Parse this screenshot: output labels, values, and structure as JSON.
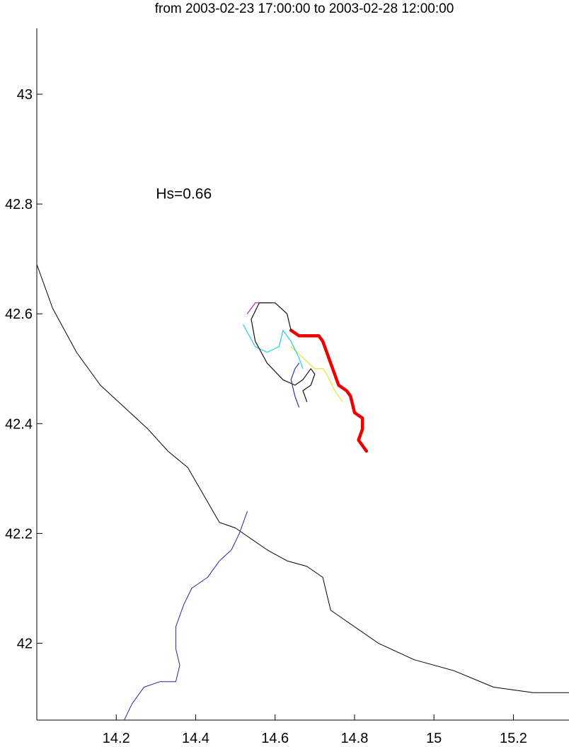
{
  "chart_data": {
    "type": "line",
    "title": "from 2003-02-23 17:00:00 to 2003-02-28 12:00:00",
    "xlabel": "",
    "ylabel": "",
    "xlim": [
      14.0,
      15.34
    ],
    "ylim": [
      41.86,
      43.12
    ],
    "x_ticks": [
      {
        "value": 14.2,
        "label": "14.2"
      },
      {
        "value": 14.4,
        "label": "14.4"
      },
      {
        "value": 14.6,
        "label": "14.6"
      },
      {
        "value": 14.8,
        "label": "14.8"
      },
      {
        "value": 15.0,
        "label": "15"
      },
      {
        "value": 15.2,
        "label": "15.2"
      }
    ],
    "y_ticks": [
      {
        "value": 42.0,
        "label": "42"
      },
      {
        "value": 42.2,
        "label": "42.2"
      },
      {
        "value": 42.4,
        "label": "42.4"
      },
      {
        "value": 42.6,
        "label": "42.6"
      },
      {
        "value": 42.8,
        "label": "42.8"
      },
      {
        "value": 43.0,
        "label": "43"
      }
    ],
    "annotation": {
      "text": "Hs=0.66",
      "x": 14.3,
      "y": 42.81
    },
    "grid": false,
    "series": [
      {
        "kind": "coastline",
        "color": "#000000",
        "x": [
          14.0,
          14.04,
          14.1,
          14.16,
          14.22,
          14.28,
          14.33,
          14.38,
          14.42,
          14.46,
          14.5,
          14.54,
          14.58,
          14.63,
          14.68,
          14.72,
          14.73,
          14.74,
          14.78,
          14.86,
          14.95,
          15.05,
          15.15,
          15.25,
          15.34
        ],
        "y": [
          42.69,
          42.61,
          42.53,
          42.47,
          42.43,
          42.39,
          42.35,
          42.32,
          42.27,
          42.22,
          42.21,
          42.19,
          42.17,
          42.15,
          42.14,
          42.12,
          42.09,
          42.06,
          42.04,
          42.0,
          41.97,
          41.95,
          41.92,
          41.91,
          41.91
        ]
      },
      {
        "kind": "river",
        "color": "#1f2a9e",
        "x": [
          14.53,
          14.51,
          14.49,
          14.46,
          14.43,
          14.39,
          14.37,
          14.35,
          14.35,
          14.36,
          14.35,
          14.31,
          14.27,
          14.24,
          14.22
        ],
        "y": [
          42.24,
          42.2,
          42.17,
          42.15,
          42.12,
          42.1,
          42.07,
          42.03,
          41.99,
          41.96,
          41.93,
          41.93,
          41.92,
          41.89,
          41.86
        ]
      },
      {
        "kind": "trajectory",
        "color": "#ee0000",
        "x": [
          14.64,
          14.66,
          14.69,
          14.71,
          14.72,
          14.74,
          14.76,
          14.78,
          14.79,
          14.8,
          14.82,
          14.82,
          14.81,
          14.83
        ],
        "y": [
          42.57,
          42.56,
          42.56,
          42.56,
          42.55,
          42.51,
          42.47,
          42.46,
          42.45,
          42.42,
          42.41,
          42.39,
          42.37,
          42.35
        ]
      },
      {
        "kind": "trajectory",
        "color": "#f2e02a",
        "x": [
          14.64,
          14.67,
          14.7,
          14.72,
          14.73,
          14.75,
          14.77
        ],
        "y": [
          42.54,
          42.52,
          42.5,
          42.5,
          42.49,
          42.46,
          42.44
        ]
      },
      {
        "kind": "trajectory",
        "color": "#22d0e8",
        "x": [
          14.52,
          14.55,
          14.58,
          14.61,
          14.62,
          14.64,
          14.66,
          14.67
        ],
        "y": [
          42.58,
          42.54,
          42.53,
          42.54,
          42.57,
          42.55,
          42.52,
          42.5
        ]
      },
      {
        "kind": "trajectory",
        "color": "#c020c0",
        "x": [
          14.53,
          14.54,
          14.55,
          14.57,
          14.59
        ],
        "y": [
          42.6,
          42.61,
          42.62,
          42.62,
          42.62
        ]
      },
      {
        "kind": "trajectory",
        "color": "#111111",
        "x": [
          14.64,
          14.63,
          14.6,
          14.56,
          14.54,
          14.55,
          14.58,
          14.62,
          14.65,
          14.67,
          14.69,
          14.7,
          14.69,
          14.67,
          14.68
        ],
        "y": [
          42.57,
          42.6,
          42.62,
          42.62,
          42.59,
          42.55,
          42.51,
          42.48,
          42.47,
          42.48,
          42.5,
          42.49,
          42.47,
          42.46,
          42.44
        ]
      },
      {
        "kind": "trajectory",
        "color": "#2a3aa8",
        "x": [
          14.66,
          14.65,
          14.64,
          14.65,
          14.66
        ],
        "y": [
          42.51,
          42.5,
          42.48,
          42.45,
          42.43
        ]
      }
    ]
  }
}
